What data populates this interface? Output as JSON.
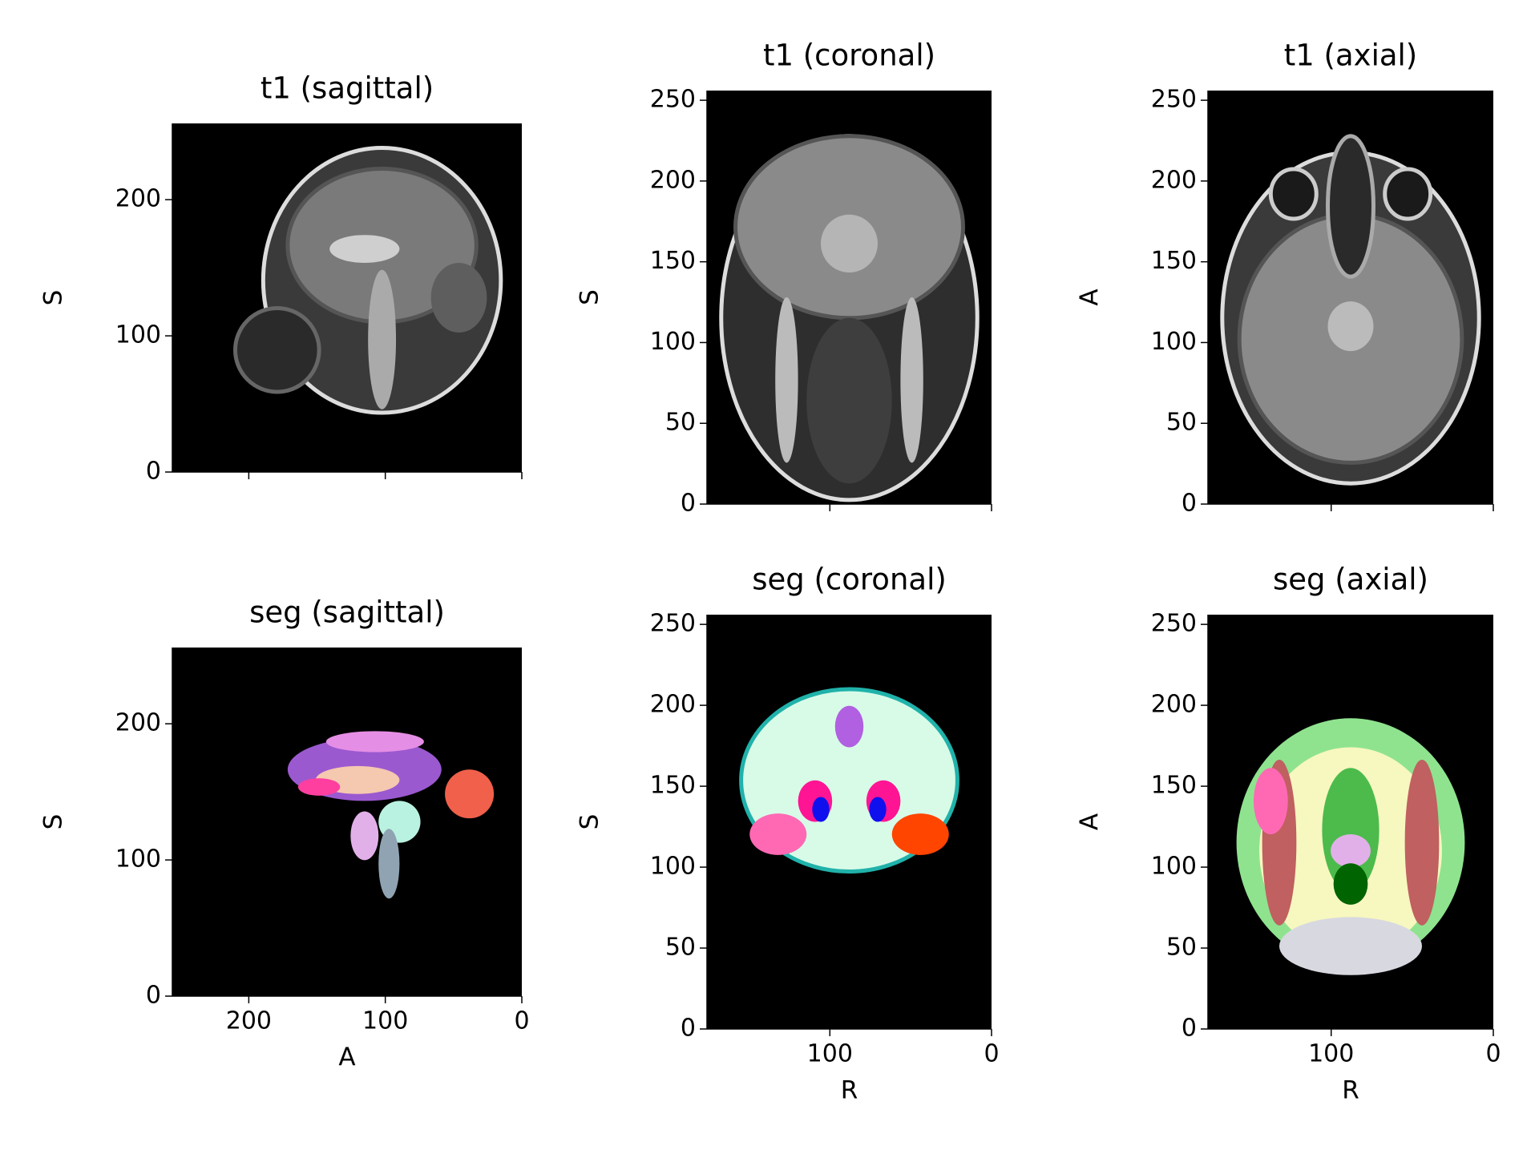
{
  "chart_data": [
    {
      "type": "image",
      "title": "t1 (sagittal)",
      "ylabel": "S",
      "xlim": [
        256,
        0
      ],
      "ylim": [
        0,
        256
      ],
      "xticks": [
        200,
        100,
        0
      ],
      "yticks": [
        0,
        100,
        200
      ],
      "show_xticklabels": false
    },
    {
      "type": "image",
      "title": "t1 (coronal)",
      "ylabel": "S",
      "xlim": [
        176,
        0
      ],
      "ylim": [
        0,
        256
      ],
      "xticks": [
        100,
        0
      ],
      "yticks": [
        0,
        50,
        100,
        150,
        200,
        250
      ],
      "show_xticklabels": false
    },
    {
      "type": "image",
      "title": "t1 (axial)",
      "ylabel": "A",
      "xlim": [
        176,
        0
      ],
      "ylim": [
        0,
        256
      ],
      "xticks": [
        100,
        0
      ],
      "yticks": [
        0,
        50,
        100,
        150,
        200,
        250
      ],
      "show_xticklabels": false
    },
    {
      "type": "image",
      "title": "seg (sagittal)",
      "xlabel": "A",
      "ylabel": "S",
      "xlim": [
        256,
        0
      ],
      "ylim": [
        0,
        256
      ],
      "xticks": [
        200,
        100,
        0
      ],
      "yticks": [
        0,
        100,
        200
      ],
      "show_xticklabels": true
    },
    {
      "type": "image",
      "title": "seg (coronal)",
      "xlabel": "R",
      "ylabel": "S",
      "xlim": [
        176,
        0
      ],
      "ylim": [
        0,
        256
      ],
      "xticks": [
        100,
        0
      ],
      "yticks": [
        0,
        50,
        100,
        150,
        200,
        250
      ],
      "show_xticklabels": true
    },
    {
      "type": "image",
      "title": "seg (axial)",
      "xlabel": "R",
      "ylabel": "A",
      "xlim": [
        176,
        0
      ],
      "ylim": [
        0,
        256
      ],
      "xticks": [
        100,
        0
      ],
      "yticks": [
        0,
        50,
        100,
        150,
        200,
        250
      ],
      "show_xticklabels": true
    }
  ]
}
